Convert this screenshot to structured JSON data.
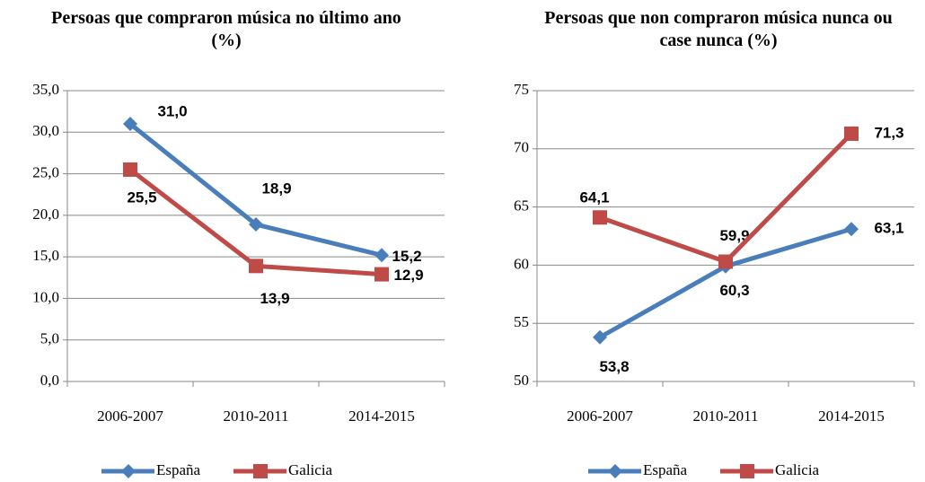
{
  "chart_data": [
    {
      "type": "line",
      "title": "Persoas que compraron música no último ano (%)",
      "categories": [
        "2006-2007",
        "2010-2011",
        "2014-2015"
      ],
      "series": [
        {
          "name": "España",
          "color": "#4a7ebb",
          "marker": "diamond",
          "values": [
            31.0,
            18.9,
            15.2
          ],
          "value_labels": [
            "31,0",
            "18,9",
            "15,2"
          ]
        },
        {
          "name": "Galicia",
          "color": "#be4b48",
          "marker": "square",
          "values": [
            25.5,
            13.9,
            12.9
          ],
          "value_labels": [
            "25,5",
            "13,9",
            "12,9"
          ]
        }
      ],
      "ylim": [
        0,
        35
      ],
      "yticks": [
        {
          "value": 0,
          "label": "0,0"
        },
        {
          "value": 5,
          "label": "5,0"
        },
        {
          "value": 10,
          "label": "10,0"
        },
        {
          "value": 15,
          "label": "15,0"
        },
        {
          "value": 20,
          "label": "20,0"
        },
        {
          "value": 25,
          "label": "25,0"
        },
        {
          "value": 30,
          "label": "30,0"
        },
        {
          "value": 35,
          "label": "35,0"
        }
      ],
      "grid": true,
      "legend": "bottom"
    },
    {
      "type": "line",
      "title": "Persoas que non compraron música nunca ou case nunca (%)",
      "categories": [
        "2006-2007",
        "2010-2011",
        "2014-2015"
      ],
      "series": [
        {
          "name": "España",
          "color": "#4a7ebb",
          "marker": "diamond",
          "values": [
            53.8,
            59.9,
            63.1
          ],
          "value_labels": [
            "53,8",
            "59,9",
            "63,1"
          ]
        },
        {
          "name": "Galicia",
          "color": "#be4b48",
          "marker": "square",
          "values": [
            64.1,
            60.3,
            71.3
          ],
          "value_labels": [
            "64,1",
            "60,3",
            "71,3"
          ]
        }
      ],
      "ylim": [
        50,
        75
      ],
      "yticks": [
        50,
        55,
        60,
        65,
        70,
        75
      ],
      "grid": true,
      "legend": "bottom"
    }
  ]
}
